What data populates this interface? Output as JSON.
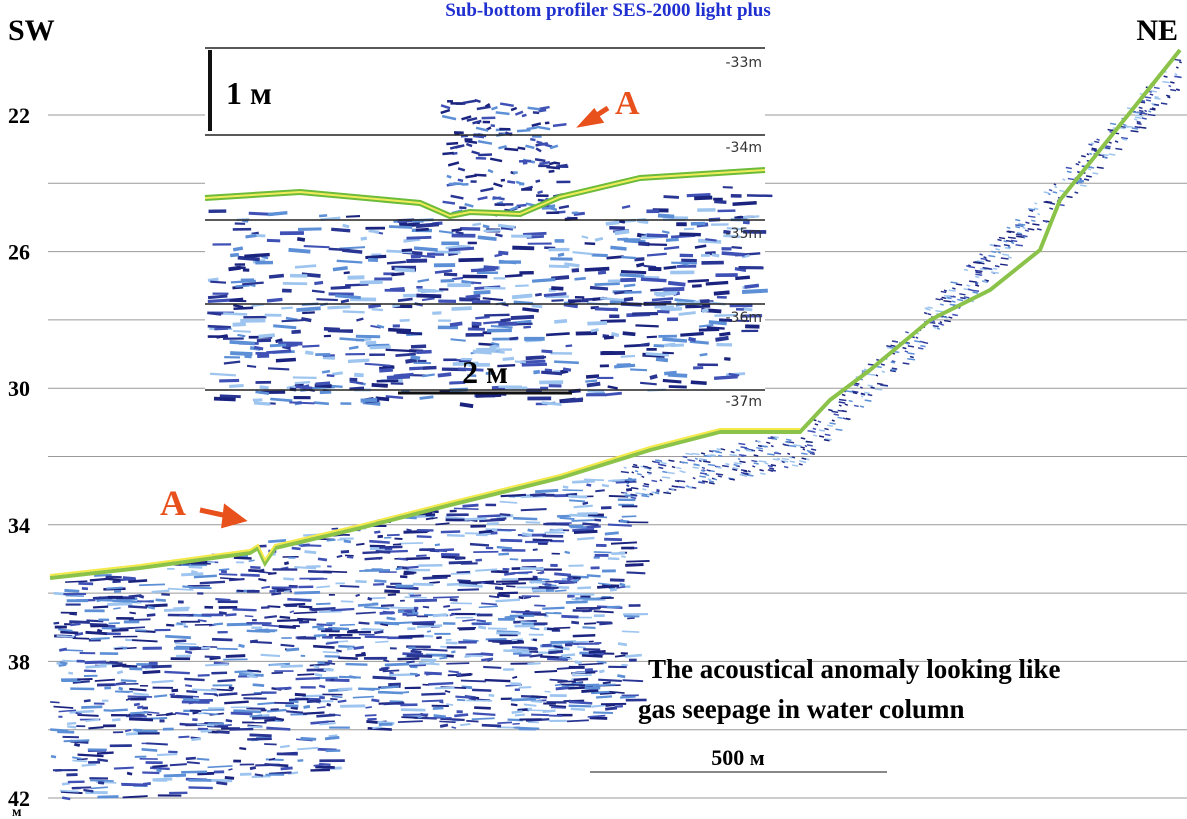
{
  "header": {
    "title": "Sub-bottom profiler SES-2000 light plus",
    "left": "SW",
    "right": "NE"
  },
  "depth_axis": {
    "labels": [
      "22",
      "26",
      "30",
      "34",
      "38",
      "42"
    ],
    "unit": "м"
  },
  "inset": {
    "scale_vertical": "1 м",
    "scale_horizontal": "2 м",
    "marker": "A",
    "depth_labels": [
      "-33m",
      "-34m",
      "-35m",
      "-36m",
      "-37m"
    ]
  },
  "profile": {
    "marker": "A",
    "caption": [
      "The acoustical anomaly looking like",
      "gas seepage in water column"
    ],
    "scale": "500 м"
  }
}
